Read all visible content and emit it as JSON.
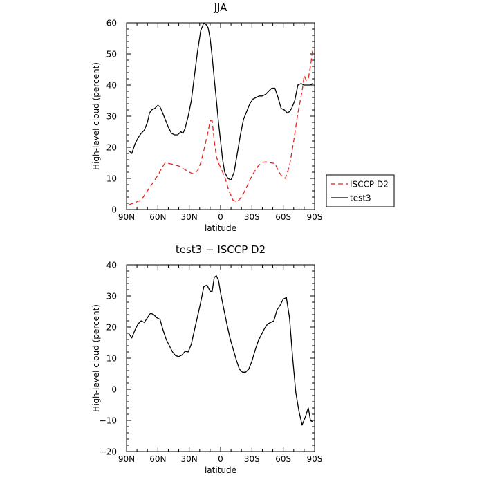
{
  "chart_data": [
    {
      "type": "line",
      "title": "JJA",
      "xlabel": "latitude",
      "ylabel": "High-level cloud (percent)",
      "xlim": [
        90,
        -90
      ],
      "ylim": [
        0,
        60
      ],
      "xticks": [
        90,
        60,
        30,
        0,
        -30,
        -60,
        -90
      ],
      "xtick_labels": [
        "90N",
        "60N",
        "30N",
        "0",
        "30S",
        "60S",
        "90S"
      ],
      "yticks": [
        0,
        10,
        20,
        30,
        40,
        50,
        60
      ],
      "ytick_labels": [
        "0",
        "10",
        "20",
        "30",
        "40",
        "50",
        "60"
      ],
      "grid": false,
      "legend": "right",
      "series": [
        {
          "name": "ISCCP D2",
          "color": "#e8231f",
          "dash": true,
          "x": [
            88,
            84,
            80,
            76,
            72,
            68,
            64,
            60,
            56,
            53,
            50,
            45,
            40,
            35,
            30,
            26,
            22,
            19,
            16,
            12,
            10,
            8,
            6,
            4,
            2,
            0,
            -4,
            -8,
            -12,
            -16,
            -20,
            -24,
            -28,
            -32,
            -36,
            -40,
            -44,
            -48,
            -52,
            -56,
            -58,
            -62,
            -66,
            -70,
            -74,
            -78,
            -80,
            -82,
            -84,
            -86,
            -88
          ],
          "y": [
            1.5,
            2,
            2.5,
            3,
            5,
            7,
            9,
            11,
            13.5,
            15,
            14.8,
            14.5,
            14,
            13,
            12,
            11.5,
            12.5,
            15,
            19,
            25,
            28.5,
            28.5,
            22,
            17,
            15,
            13.5,
            10.5,
            6,
            3,
            2.5,
            4,
            6.5,
            9.5,
            12,
            14,
            15.2,
            15.3,
            15,
            14.8,
            12,
            11,
            10,
            14,
            22,
            31,
            38,
            43,
            41.5,
            42,
            46,
            51
          ]
        },
        {
          "name": "test3",
          "color": "#000000",
          "dash": false,
          "x": [
            88,
            85,
            82,
            79,
            76,
            73,
            70,
            68,
            66,
            63,
            60,
            58,
            56,
            53,
            50,
            47,
            44,
            41,
            38,
            36,
            34,
            31,
            28,
            25,
            22,
            19,
            16,
            14,
            12,
            10,
            8,
            6,
            4,
            2,
            0,
            -2,
            -4,
            -7,
            -10,
            -13,
            -16,
            -19,
            -22,
            -25,
            -28,
            -31,
            -34,
            -37,
            -40,
            -43,
            -46,
            -49,
            -52,
            -55,
            -58,
            -61,
            -64,
            -66,
            -68,
            -71,
            -74,
            -77,
            -80,
            -83,
            -86,
            -88
          ],
          "y": [
            19,
            18,
            21,
            23,
            24.5,
            25.5,
            28,
            31,
            32,
            32.5,
            33.5,
            33,
            31.5,
            29,
            26.5,
            24.5,
            24,
            24,
            25,
            24.5,
            26,
            30,
            35,
            43,
            51,
            57.5,
            60,
            59.5,
            58.5,
            55,
            49,
            42,
            35,
            28,
            22,
            16,
            12,
            10,
            9.5,
            12,
            18,
            24,
            29,
            31.5,
            34,
            35.5,
            36,
            36.5,
            36.5,
            37,
            38,
            39,
            39,
            36,
            32.5,
            32,
            31,
            31.5,
            32.5,
            35,
            40,
            40.5,
            40,
            40,
            40,
            40.5
          ]
        }
      ]
    },
    {
      "type": "line",
      "title": "test3 − ISCCP D2",
      "xlabel": "latitude",
      "ylabel": "High-level cloud (percent)",
      "xlim": [
        90,
        -90
      ],
      "ylim": [
        -20,
        40
      ],
      "xticks": [
        90,
        60,
        30,
        0,
        -30,
        -60,
        -90
      ],
      "xtick_labels": [
        "90N",
        "60N",
        "30N",
        "0",
        "30S",
        "60S",
        "90S"
      ],
      "yticks": [
        -20,
        -10,
        0,
        10,
        20,
        30,
        40
      ],
      "ytick_labels": [
        "−20",
        "−10",
        "0",
        "10",
        "20",
        "30",
        "40"
      ],
      "grid": false,
      "series": [
        {
          "color": "#000000",
          "dash": false,
          "x": [
            88,
            85,
            82,
            79,
            76,
            73,
            70,
            67,
            64,
            61,
            58,
            55,
            52,
            49,
            46,
            43,
            40,
            37,
            34,
            31,
            28,
            25,
            22,
            19,
            16,
            13,
            10,
            8,
            6,
            4,
            2,
            0,
            -3,
            -6,
            -9,
            -12,
            -15,
            -18,
            -21,
            -24,
            -27,
            -30,
            -33,
            -36,
            -39,
            -42,
            -45,
            -48,
            -51,
            -54,
            -57,
            -60,
            -63,
            -66,
            -69,
            -72,
            -75,
            -78,
            -81,
            -84,
            -86,
            -88
          ],
          "y": [
            18,
            16.5,
            19,
            21,
            22,
            21.5,
            23,
            24.5,
            24,
            23,
            22.5,
            19,
            16,
            14,
            12,
            10.8,
            10.5,
            11,
            12.2,
            12,
            14.5,
            19,
            23.5,
            28,
            33,
            33.5,
            31.5,
            31.5,
            36,
            36.5,
            35,
            31,
            26,
            21,
            16.5,
            13,
            9.5,
            6.5,
            5.5,
            5.5,
            6.5,
            9,
            12.5,
            15.5,
            17.5,
            19.5,
            21,
            21.5,
            22,
            25.5,
            27,
            29,
            29.5,
            23,
            10,
            -1,
            -7,
            -11.5,
            -9,
            -6,
            -10,
            -10.5
          ]
        }
      ]
    }
  ]
}
